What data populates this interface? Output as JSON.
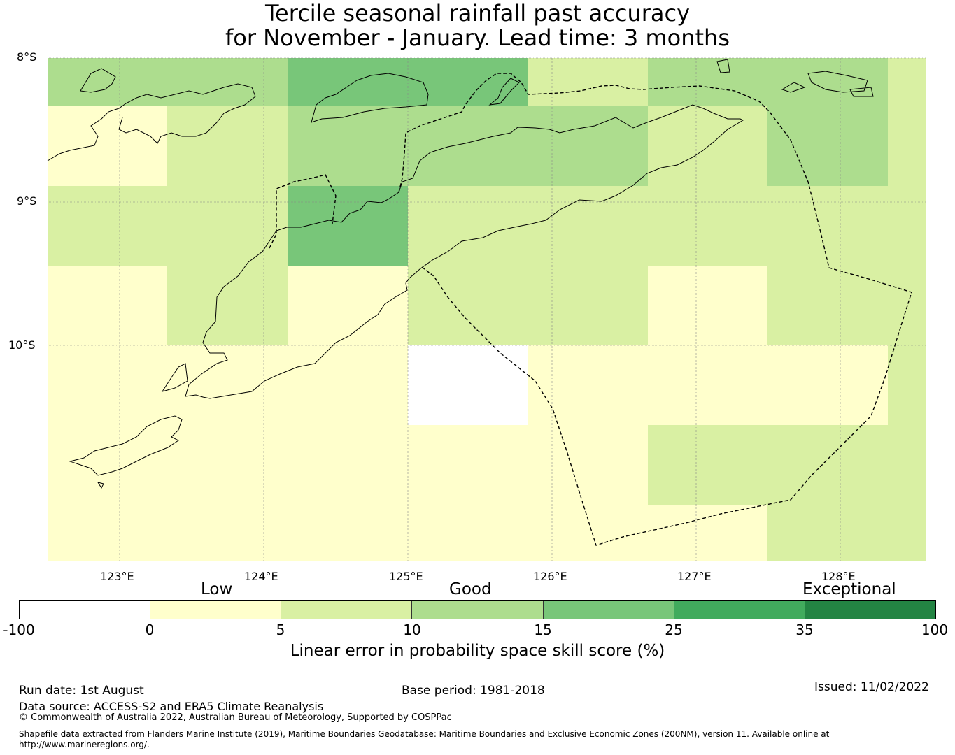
{
  "title": {
    "line1": "Tercile seasonal rainfall past accuracy",
    "line2": "for November - January. Lead time: 3 months"
  },
  "map": {
    "lat_labels": [
      "8°S",
      "9°S",
      "10°S"
    ],
    "lon_labels": [
      "123°E",
      "124°E",
      "125°E",
      "126°E",
      "127°E",
      "128°E"
    ],
    "extent": {
      "lon": [
        122.5,
        128.6
      ],
      "lat": [
        -8.0,
        -11.5
      ]
    },
    "grid_cells": [
      {
        "row": 0,
        "col": 0,
        "class": "10-15"
      },
      {
        "row": 0,
        "col": 1,
        "class": "10-15"
      },
      {
        "row": 0,
        "col": 2,
        "class": "15-25"
      },
      {
        "row": 0,
        "col": 3,
        "class": "15-25"
      },
      {
        "row": 0,
        "col": 4,
        "class": "5-10"
      },
      {
        "row": 0,
        "col": 5,
        "class": "10-15"
      },
      {
        "row": 0,
        "col": 6,
        "class": "10-15"
      },
      {
        "row": 0,
        "col": 7,
        "class": "5-10"
      },
      {
        "row": 1,
        "col": 0,
        "class": "0-5"
      },
      {
        "row": 1,
        "col": 1,
        "class": "5-10"
      },
      {
        "row": 1,
        "col": 2,
        "class": "10-15"
      },
      {
        "row": 1,
        "col": 3,
        "class": "10-15"
      },
      {
        "row": 1,
        "col": 4,
        "class": "10-15"
      },
      {
        "row": 1,
        "col": 5,
        "class": "5-10"
      },
      {
        "row": 1,
        "col": 6,
        "class": "10-15"
      },
      {
        "row": 1,
        "col": 7,
        "class": "5-10"
      },
      {
        "row": 2,
        "col": 0,
        "class": "5-10"
      },
      {
        "row": 2,
        "col": 1,
        "class": "5-10"
      },
      {
        "row": 2,
        "col": 2,
        "class": "15-25"
      },
      {
        "row": 2,
        "col": 3,
        "class": "5-10"
      },
      {
        "row": 2,
        "col": 4,
        "class": "5-10"
      },
      {
        "row": 2,
        "col": 5,
        "class": "5-10"
      },
      {
        "row": 2,
        "col": 6,
        "class": "5-10"
      },
      {
        "row": 2,
        "col": 7,
        "class": "5-10"
      },
      {
        "row": 3,
        "col": 0,
        "class": "0-5"
      },
      {
        "row": 3,
        "col": 1,
        "class": "5-10"
      },
      {
        "row": 3,
        "col": 2,
        "class": "0-5"
      },
      {
        "row": 3,
        "col": 3,
        "class": "5-10"
      },
      {
        "row": 3,
        "col": 4,
        "class": "5-10"
      },
      {
        "row": 3,
        "col": 5,
        "class": "0-5"
      },
      {
        "row": 3,
        "col": 6,
        "class": "5-10"
      },
      {
        "row": 3,
        "col": 7,
        "class": "5-10"
      },
      {
        "row": 4,
        "col": 0,
        "class": "0-5"
      },
      {
        "row": 4,
        "col": 1,
        "class": "0-5"
      },
      {
        "row": 4,
        "col": 2,
        "class": "0-5"
      },
      {
        "row": 4,
        "col": 3,
        "class": "below-0"
      },
      {
        "row": 4,
        "col": 4,
        "class": "0-5"
      },
      {
        "row": 4,
        "col": 5,
        "class": "0-5"
      },
      {
        "row": 4,
        "col": 6,
        "class": "0-5"
      },
      {
        "row": 4,
        "col": 7,
        "class": "5-10"
      },
      {
        "row": 5,
        "col": 0,
        "class": "0-5"
      },
      {
        "row": 5,
        "col": 1,
        "class": "0-5"
      },
      {
        "row": 5,
        "col": 2,
        "class": "0-5"
      },
      {
        "row": 5,
        "col": 3,
        "class": "0-5"
      },
      {
        "row": 5,
        "col": 4,
        "class": "0-5"
      },
      {
        "row": 5,
        "col": 5,
        "class": "5-10"
      },
      {
        "row": 5,
        "col": 6,
        "class": "5-10"
      },
      {
        "row": 5,
        "col": 7,
        "class": "5-10"
      },
      {
        "row": 6,
        "col": 0,
        "class": "0-5"
      },
      {
        "row": 6,
        "col": 1,
        "class": "0-5"
      },
      {
        "row": 6,
        "col": 2,
        "class": "0-5"
      },
      {
        "row": 6,
        "col": 3,
        "class": "0-5"
      },
      {
        "row": 6,
        "col": 4,
        "class": "0-5"
      },
      {
        "row": 6,
        "col": 5,
        "class": "0-5"
      },
      {
        "row": 6,
        "col": 6,
        "class": "5-10"
      },
      {
        "row": 6,
        "col": 7,
        "class": "5-10"
      }
    ]
  },
  "colorbar": {
    "category_labels": [
      "Low",
      "Good",
      "Exceptional"
    ],
    "ticks": [
      "-100",
      "0",
      "5",
      "10",
      "15",
      "25",
      "35",
      "100"
    ],
    "colors": [
      "#ffffff",
      "#ffffcc",
      "#d9f0a3",
      "#addd8e",
      "#78c679",
      "#41ab5d",
      "#238443"
    ],
    "class_colors": {
      "below-0": "#ffffff",
      "0-5": "#ffffcc",
      "5-10": "#d9f0a3",
      "10-15": "#addd8e",
      "15-25": "#78c679",
      "25-35": "#41ab5d",
      "35-100": "#238443"
    },
    "axis_label": "Linear error in probability space skill score (%)"
  },
  "footer": {
    "run_date": "Run date: 1st August",
    "base_period": "Base period: 1981-2018",
    "issued": "Issued: 11/02/2022",
    "data_source": "Data source: ACCESS-S2 and ERA5 Climate Reanalysis",
    "copyright": "© Commonwealth of Australia 2022, Australian Bureau of Meteorology, Supported by COSPPac",
    "shapefile_line1": "Shapefile data extracted from Flanders Marine Institute (2019), Maritime Boundaries Geodatabase: Maritime Boundaries and Exclusive Economic Zones (200NM), version 11. Available online at",
    "shapefile_line2": "http://www.marineregions.org/."
  }
}
